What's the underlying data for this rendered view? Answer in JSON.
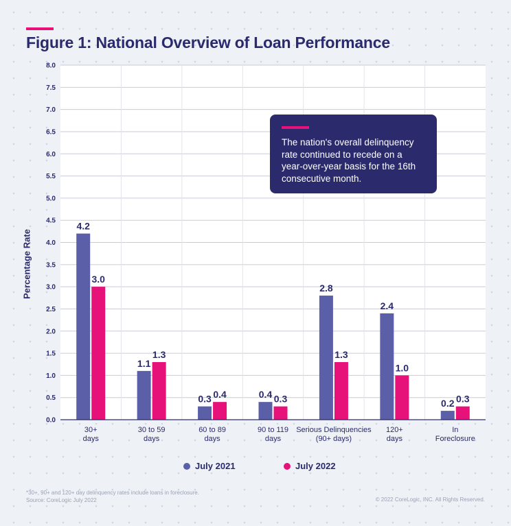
{
  "chart_data": {
    "type": "bar",
    "title": "Figure 1: National Overview of Loan Performance",
    "xlabel": "",
    "ylabel": "Percentage Rate",
    "ylim": [
      0,
      8.0
    ],
    "yticks": [
      "0.0",
      "0.5",
      "1.0",
      "1.5",
      "2.0",
      "2.5",
      "3.0",
      "3.5",
      "4.0",
      "4.5",
      "5.0",
      "5.5",
      "6.0",
      "6.5",
      "7.0",
      "7.5",
      "8.0"
    ],
    "categories": [
      [
        "30+",
        "days"
      ],
      [
        "30 to 59",
        "days"
      ],
      [
        "60 to 89",
        "days"
      ],
      [
        "90 to 119",
        "days"
      ],
      [
        "Serious Delinquencies",
        "(90+ days)"
      ],
      [
        "120+",
        "days"
      ],
      [
        "In",
        "Foreclosure"
      ]
    ],
    "series": [
      {
        "name": "July 2021",
        "color": "#5b5fa8",
        "values": [
          4.2,
          1.1,
          0.3,
          0.4,
          2.8,
          2.4,
          0.2
        ],
        "labels": [
          "4.2",
          "1.1",
          "0.3",
          "0.4",
          "2.8",
          "2.4",
          "0.2"
        ]
      },
      {
        "name": "July 2022",
        "color": "#e6127a",
        "values": [
          3.0,
          1.3,
          0.4,
          0.3,
          1.3,
          1.0,
          0.3
        ],
        "labels": [
          "3.0",
          "1.3",
          "0.4",
          "0.3",
          "1.3",
          "1.0",
          "0.3"
        ]
      }
    ],
    "grid": true,
    "legend": "bottom-center"
  },
  "callout": {
    "text": "The nation's overall delinquency rate continued to recede on a year-over-year basis for the 16th consecutive month."
  },
  "footer": {
    "note": "*30+, 90+ and 120+ day delinquency rates include loans in foreclosure.",
    "source": "Source: CoreLogic July 2022",
    "copyright": "© 2022 CoreLogic, INC. All Rights Reserved."
  },
  "colors": {
    "navy": "#2a2a6c",
    "accent": "#e6127a",
    "series1": "#5b5fa8",
    "series2": "#e6127a"
  }
}
